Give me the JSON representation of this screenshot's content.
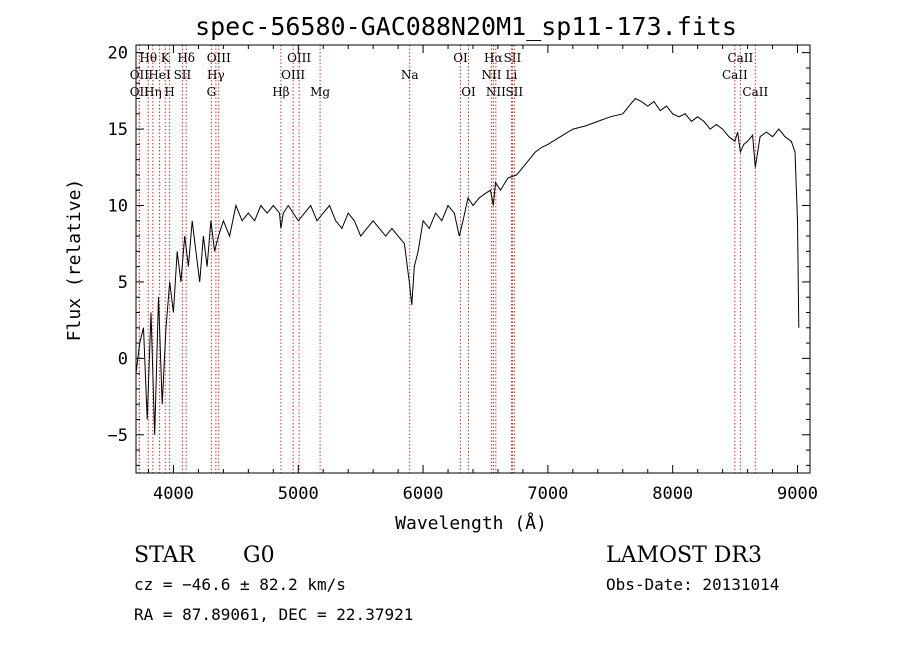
{
  "chart_data": {
    "type": "line",
    "title": "spec-56580-GAC088N20M1_sp11-173.fits",
    "xlabel": "Wavelength (Å)",
    "ylabel": "Flux (relative)",
    "xlim": [
      3700,
      9100
    ],
    "ylim": [
      -7.5,
      20.5
    ],
    "xticks": [
      4000,
      5000,
      6000,
      7000,
      8000,
      9000
    ],
    "xtick_labels": [
      "4000",
      "5000",
      "6000",
      "7000",
      "8000",
      "9000"
    ],
    "yticks": [
      -5,
      0,
      5,
      10,
      15,
      20
    ],
    "ytick_labels": [
      "−5",
      "0",
      "5",
      "10",
      "15",
      "20"
    ],
    "grid": false,
    "series": [
      {
        "name": "spectrum",
        "x": [
          3700,
          3730,
          3760,
          3790,
          3820,
          3850,
          3880,
          3910,
          3940,
          3970,
          4000,
          4030,
          4060,
          4090,
          4120,
          4150,
          4180,
          4210,
          4240,
          4270,
          4300,
          4330,
          4360,
          4400,
          4450,
          4500,
          4550,
          4600,
          4650,
          4700,
          4750,
          4800,
          4850,
          4861,
          4880,
          4920,
          4960,
          5000,
          5050,
          5100,
          5150,
          5200,
          5250,
          5300,
          5350,
          5400,
          5450,
          5500,
          5550,
          5600,
          5650,
          5700,
          5750,
          5800,
          5850,
          5890,
          5910,
          5930,
          5960,
          6000,
          6050,
          6100,
          6150,
          6200,
          6250,
          6290,
          6320,
          6360,
          6400,
          6450,
          6500,
          6540,
          6563,
          6580,
          6620,
          6680,
          6750,
          6800,
          6850,
          6900,
          6950,
          7000,
          7100,
          7200,
          7300,
          7400,
          7500,
          7600,
          7650,
          7700,
          7750,
          7800,
          7850,
          7900,
          7950,
          8000,
          8050,
          8100,
          8150,
          8200,
          8250,
          8300,
          8350,
          8400,
          8450,
          8498,
          8520,
          8542,
          8570,
          8600,
          8640,
          8662,
          8700,
          8750,
          8800,
          8850,
          8900,
          8950,
          8980,
          9000,
          9010
        ],
        "values": [
          -1,
          1,
          2,
          -4,
          3,
          -5,
          4,
          -3,
          2,
          5,
          3,
          7,
          5,
          8,
          6,
          9,
          7,
          5,
          8,
          6,
          9,
          7,
          8,
          9,
          8,
          10,
          9,
          9.5,
          9,
          10,
          9.5,
          10,
          9.5,
          8.5,
          9.5,
          10,
          9.5,
          9,
          9.5,
          10,
          9,
          9.5,
          10,
          9,
          8.5,
          9.5,
          9,
          8,
          8.5,
          9,
          8.5,
          8,
          8.5,
          8,
          7.5,
          5,
          3.5,
          6,
          7,
          9,
          8.5,
          9.5,
          9,
          10,
          9.5,
          8,
          9,
          10.5,
          10,
          10.5,
          10.8,
          11,
          10,
          11.5,
          11,
          11.8,
          12,
          12.5,
          13,
          13.5,
          13.8,
          14,
          14.5,
          15,
          15.2,
          15.5,
          15.8,
          16,
          16.5,
          17,
          16.8,
          16.5,
          16.8,
          16.2,
          16.5,
          16,
          15.8,
          16,
          15.5,
          15.8,
          15.5,
          15,
          15.3,
          15,
          14.5,
          14.2,
          14.8,
          13.5,
          14,
          14.2,
          14.6,
          12.5,
          14.5,
          14.8,
          14.5,
          15,
          14.5,
          14.2,
          13.5,
          9,
          2
        ]
      }
    ],
    "lines": [
      {
        "wl": 3798,
        "label": "Hθ",
        "row": 0
      },
      {
        "wl": 3727,
        "label": "OII",
        "row": 1
      },
      {
        "wl": 3727,
        "label": "OII",
        "row": 2
      },
      {
        "wl": 3835,
        "label": "Hη",
        "row": 2
      },
      {
        "wl": 3889,
        "label": "HeI",
        "row": 1
      },
      {
        "wl": 3934,
        "label": "K",
        "row": 0
      },
      {
        "wl": 3969,
        "label": "H",
        "row": 2
      },
      {
        "wl": 4072,
        "label": "SII",
        "row": 1
      },
      {
        "wl": 4102,
        "label": "Hδ",
        "row": 0
      },
      {
        "wl": 4304,
        "label": "G",
        "row": 2
      },
      {
        "wl": 4340,
        "label": "Hγ",
        "row": 1
      },
      {
        "wl": 4363,
        "label": "OIII",
        "row": 0
      },
      {
        "wl": 4861,
        "label": "Hβ",
        "row": 2
      },
      {
        "wl": 4959,
        "label": "OIII",
        "row": 1
      },
      {
        "wl": 5007,
        "label": "OIII",
        "row": 0
      },
      {
        "wl": 5175,
        "label": "Mg",
        "row": 2
      },
      {
        "wl": 5893,
        "label": "Na",
        "row": 1
      },
      {
        "wl": 6300,
        "label": "OI",
        "row": 0
      },
      {
        "wl": 6364,
        "label": "OI",
        "row": 2
      },
      {
        "wl": 6548,
        "label": "NII",
        "row": 1
      },
      {
        "wl": 6563,
        "label": "Hα",
        "row": 0
      },
      {
        "wl": 6583,
        "label": "NII",
        "row": 2
      },
      {
        "wl": 6708,
        "label": "Li",
        "row": 1
      },
      {
        "wl": 6716,
        "label": "SII",
        "row": 0
      },
      {
        "wl": 6731,
        "label": "SII",
        "row": 2
      },
      {
        "wl": 8498,
        "label": "CaII",
        "row": 1
      },
      {
        "wl": 8542,
        "label": "CaII",
        "row": 0
      },
      {
        "wl": 8662,
        "label": "CaII",
        "row": 2
      }
    ]
  },
  "info": {
    "object_class": "STAR",
    "subclass": "G0",
    "survey": "LAMOST DR3",
    "redshift": "cz = −46.6 ± 82.2 km/s",
    "obs_date": "Obs-Date: 20131014",
    "coords": "RA =  87.89061, DEC =  22.37921"
  }
}
